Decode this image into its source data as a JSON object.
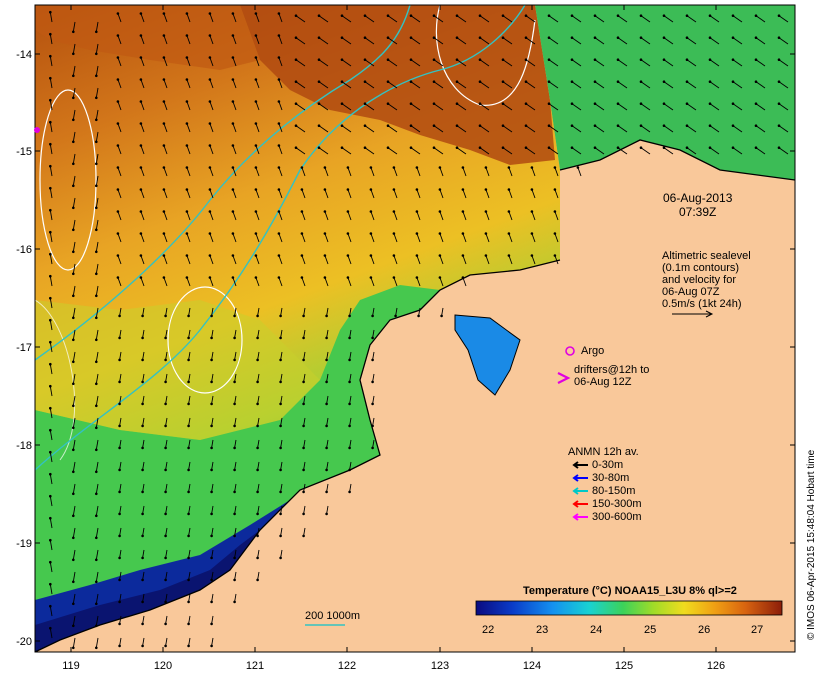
{
  "map": {
    "lat_ticks": [
      "-14",
      "-15",
      "-16",
      "-17",
      "-18",
      "-19",
      "-20"
    ],
    "lon_ticks": [
      "119",
      "120",
      "121",
      "122",
      "123",
      "124",
      "125",
      "126"
    ],
    "colors": {
      "land": "#f9c89a",
      "sst_hot": "#b4440a",
      "sst_warm": "#e38a1a",
      "sst_mid": "#f2c21c",
      "sst_green": "#5fcf3a",
      "sst_cyan": "#19c8b8",
      "sst_blue": "#0a7fe0",
      "sst_cold": "#0a1a8c",
      "contour": "#ffffff",
      "isobath": "#33c2c2"
    }
  },
  "datetime": {
    "line1": "06-Aug-2013",
    "line2": "07:39Z"
  },
  "altimetry_note": {
    "lines": [
      "Altimetric sealevel",
      "(0.1m contours)",
      "and velocity for",
      "06-Aug 07Z",
      "0.5m/s (1kt 24h)"
    ]
  },
  "argo": {
    "label": "Argo"
  },
  "drifters": {
    "lines": [
      "drifters@12h to",
      "06-Aug 12Z"
    ]
  },
  "anmn": {
    "title": "ANMN 12h av.",
    "items": [
      {
        "label": "0-30m",
        "color": "#000000"
      },
      {
        "label": "30-80m",
        "color": "#0000ff"
      },
      {
        "label": "80-150m",
        "color": "#00c8c8"
      },
      {
        "label": "150-300m",
        "color": "#ff0000"
      },
      {
        "label": "300-600m",
        "color": "#ff00ff"
      }
    ]
  },
  "colorbar": {
    "title": "Temperature (°C) NOAA15_L3U 8% ql>=2",
    "ticks": [
      "22",
      "23",
      "24",
      "25",
      "26",
      "27"
    ]
  },
  "isobath_legend": {
    "label": "200  1000m"
  },
  "credit": {
    "text": "© IMOS 06-Apr-2015 15:48:04 Hobart time"
  }
}
